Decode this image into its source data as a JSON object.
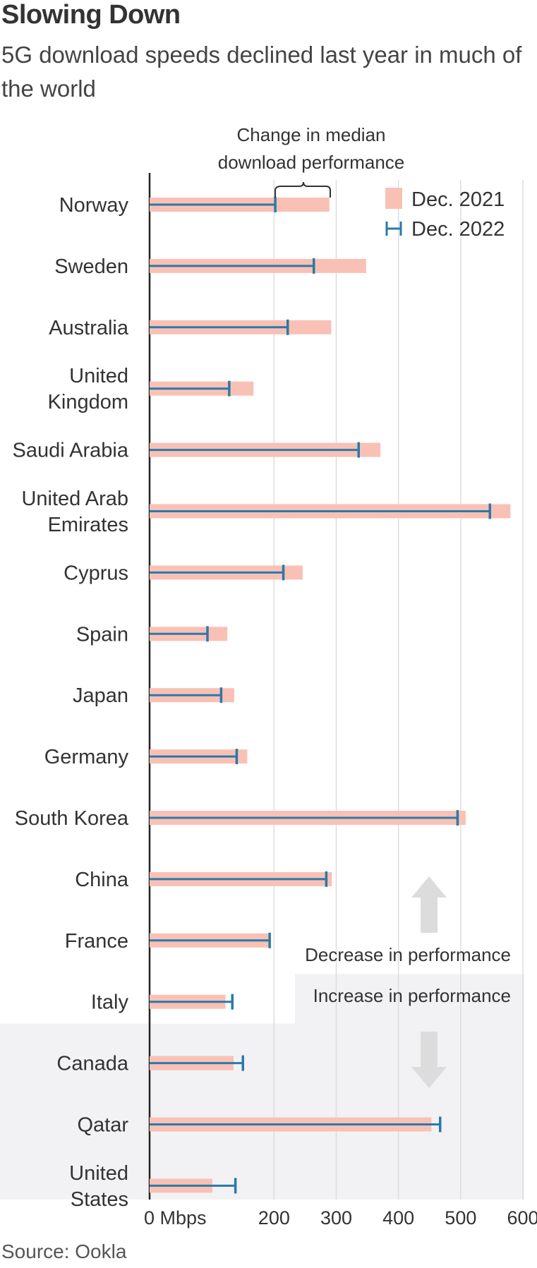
{
  "title": "Slowing Down",
  "subtitle": "5G download speeds declined last year in much of the world",
  "source": "Source: Ookla",
  "annotations": {
    "change_line1": "Change in median",
    "change_line2": "download performance",
    "decrease": "Decrease in performance",
    "increase": "Increase in performance"
  },
  "legend": {
    "dec2021": "Dec. 2021",
    "dec2022": "Dec. 2022"
  },
  "colors": {
    "bar_2021": "#f9c1b5",
    "marker_2022": "#2a7aa8",
    "grid": "#dddddd",
    "shade": "#f2f2f4",
    "axis": "#222222"
  },
  "chart_data": {
    "type": "bar",
    "orientation": "horizontal",
    "xlabel": "",
    "ylabel": "",
    "xlim": [
      0,
      600
    ],
    "x_ticks": [
      {
        "value": 0,
        "label": "0 Mbps"
      },
      {
        "value": 200,
        "label": "200"
      },
      {
        "value": 300,
        "label": "300"
      },
      {
        "value": 400,
        "label": "400"
      },
      {
        "value": 500,
        "label": "500"
      },
      {
        "value": 600,
        "label": "600"
      }
    ],
    "grid": true,
    "legend_position": "top-right",
    "categories": [
      [
        "Norway"
      ],
      [
        "Sweden"
      ],
      [
        "Australia"
      ],
      [
        "United",
        "Kingdom"
      ],
      [
        "Saudi Arabia"
      ],
      [
        "United Arab",
        "Emirates"
      ],
      [
        "Cyprus"
      ],
      [
        "Spain"
      ],
      [
        "Japan"
      ],
      [
        "Germany"
      ],
      [
        "South Korea"
      ],
      [
        "China"
      ],
      [
        "France"
      ],
      [
        "Italy"
      ],
      [
        "Canada"
      ],
      [
        "Qatar"
      ],
      [
        "United",
        "States"
      ]
    ],
    "series": [
      {
        "name": "Dec. 2021",
        "values": [
          289,
          348,
          292,
          167,
          371,
          580,
          246,
          125,
          136,
          157,
          508,
          293,
          193,
          122,
          135,
          453,
          101
        ]
      },
      {
        "name": "Dec. 2022",
        "values": [
          202,
          264,
          222,
          128,
          336,
          547,
          215,
          93,
          115,
          140,
          495,
          284,
          193,
          133,
          150,
          467,
          138
        ]
      }
    ]
  }
}
